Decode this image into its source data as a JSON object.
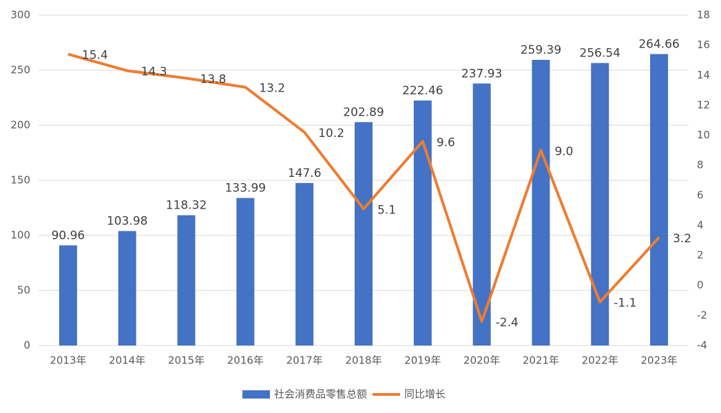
{
  "chart_data": {
    "type": "bar",
    "categories": [
      "2013年",
      "2014年",
      "2015年",
      "2016年",
      "2017年",
      "2018年",
      "2019年",
      "2020年",
      "2021年",
      "2022年",
      "2023年"
    ],
    "series": [
      {
        "name": "社会消费品零售总额",
        "color": "#4472c4",
        "type": "bar",
        "values": [
          90.96,
          103.98,
          118.32,
          133.99,
          147.6,
          202.89,
          222.46,
          237.93,
          259.39,
          256.54,
          264.66
        ]
      },
      {
        "name": "同比增长",
        "color": "#ed7d31",
        "type": "line",
        "axis": "y2",
        "values": [
          15.4,
          14.3,
          13.8,
          13.2,
          10.2,
          5.1,
          9.6,
          -2.4,
          9.0,
          -1.1,
          3.2
        ],
        "value_labels": [
          "15.4",
          "14.3",
          "13.8",
          "13.2",
          "10.2",
          "5.1",
          "9.6",
          "-2.4",
          "9.0",
          "-1.1",
          "3.2"
        ]
      }
    ],
    "ylim": [
      0,
      300
    ],
    "yticks": [
      0,
      50,
      100,
      150,
      200,
      250,
      300
    ],
    "y2lim": [
      -4,
      18
    ],
    "y2ticks": [
      -4,
      -2,
      0,
      2,
      4,
      6,
      8,
      10,
      12,
      14,
      16,
      18
    ],
    "grid": true,
    "legend": "bottom"
  }
}
